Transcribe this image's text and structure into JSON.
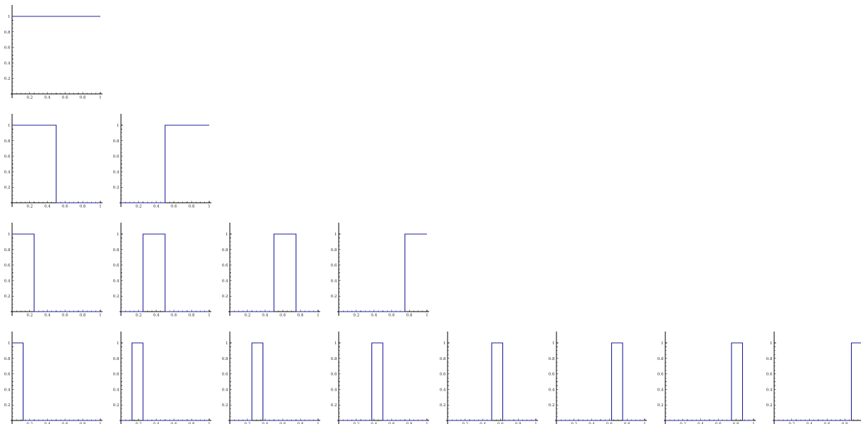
{
  "colors": {
    "series": "#1f1f9e",
    "axis": "#000000",
    "background": "#ffffff"
  },
  "chart_data": [
    {
      "type": "line",
      "row": 1,
      "col": 1,
      "x": [
        0,
        1
      ],
      "y": [
        1,
        1
      ],
      "xlim": [
        0,
        1
      ],
      "ylim": [
        0,
        1
      ],
      "x_ticks": [
        "0.2",
        "0.4",
        "0.6",
        "0.8",
        "1"
      ],
      "y_ticks": [
        "0.2",
        "0.4",
        "0.6",
        "0.8",
        "1"
      ]
    },
    {
      "type": "line",
      "row": 2,
      "col": 1,
      "x": [
        0,
        0.5,
        0.5,
        1
      ],
      "y": [
        1,
        1,
        0,
        0
      ],
      "xlim": [
        0,
        1
      ],
      "ylim": [
        0,
        1
      ],
      "x_ticks": [
        "0.2",
        "0.4",
        "0.6",
        "0.8",
        "1"
      ],
      "y_ticks": [
        "0.2",
        "0.4",
        "0.6",
        "0.8",
        "1"
      ]
    },
    {
      "type": "line",
      "row": 2,
      "col": 2,
      "x": [
        0,
        0.5,
        0.5,
        1
      ],
      "y": [
        0,
        0,
        1,
        1
      ],
      "xlim": [
        0,
        1
      ],
      "ylim": [
        0,
        1
      ],
      "x_ticks": [
        "0.2",
        "0.4",
        "0.6",
        "0.8",
        "1"
      ],
      "y_ticks": [
        "0.2",
        "0.4",
        "0.6",
        "0.8",
        "1"
      ]
    },
    {
      "type": "line",
      "row": 3,
      "col": 1,
      "x": [
        0,
        0.25,
        0.25,
        1
      ],
      "y": [
        1,
        1,
        0,
        0
      ],
      "xlim": [
        0,
        1
      ],
      "ylim": [
        0,
        1
      ],
      "x_ticks": [
        "0.2",
        "0.4",
        "0.6",
        "0.8",
        "1"
      ],
      "y_ticks": [
        "0.2",
        "0.4",
        "0.6",
        "0.8",
        "1"
      ]
    },
    {
      "type": "line",
      "row": 3,
      "col": 2,
      "x": [
        0,
        0.25,
        0.25,
        0.5,
        0.5,
        1
      ],
      "y": [
        0,
        0,
        1,
        1,
        0,
        0
      ],
      "xlim": [
        0,
        1
      ],
      "ylim": [
        0,
        1
      ],
      "x_ticks": [
        "0.2",
        "0.4",
        "0.6",
        "0.8",
        "1"
      ],
      "y_ticks": [
        "0.2",
        "0.4",
        "0.6",
        "0.8",
        "1"
      ]
    },
    {
      "type": "line",
      "row": 3,
      "col": 3,
      "x": [
        0,
        0.5,
        0.5,
        0.75,
        0.75,
        1
      ],
      "y": [
        0,
        0,
        1,
        1,
        0,
        0
      ],
      "xlim": [
        0,
        1
      ],
      "ylim": [
        0,
        1
      ],
      "x_ticks": [
        "0.2",
        "0.4",
        "0.6",
        "0.8",
        "1"
      ],
      "y_ticks": [
        "0.2",
        "0.4",
        "0.6",
        "0.8",
        "1"
      ]
    },
    {
      "type": "line",
      "row": 3,
      "col": 4,
      "x": [
        0,
        0.75,
        0.75,
        1
      ],
      "y": [
        0,
        0,
        1,
        1
      ],
      "xlim": [
        0,
        1
      ],
      "ylim": [
        0,
        1
      ],
      "x_ticks": [
        "0.2",
        "0.4",
        "0.6",
        "0.8",
        "1"
      ],
      "y_ticks": [
        "0.2",
        "0.4",
        "0.6",
        "0.8",
        "1"
      ]
    },
    {
      "type": "line",
      "row": 4,
      "col": 1,
      "x": [
        0,
        0.125,
        0.125,
        1
      ],
      "y": [
        1,
        1,
        0,
        0
      ],
      "xlim": [
        0,
        1
      ],
      "ylim": [
        0,
        1
      ],
      "x_ticks": [
        "0.2",
        "0.4",
        "0.6",
        "0.8",
        "1"
      ],
      "y_ticks": [
        "0.2",
        "0.4",
        "0.6",
        "0.8",
        "1"
      ]
    },
    {
      "type": "line",
      "row": 4,
      "col": 2,
      "x": [
        0,
        0.125,
        0.125,
        0.25,
        0.25,
        1
      ],
      "y": [
        0,
        0,
        1,
        1,
        0,
        0
      ],
      "xlim": [
        0,
        1
      ],
      "ylim": [
        0,
        1
      ],
      "x_ticks": [
        "0.2",
        "0.4",
        "0.6",
        "0.8",
        "1"
      ],
      "y_ticks": [
        "0.2",
        "0.4",
        "0.6",
        "0.8",
        "1"
      ]
    },
    {
      "type": "line",
      "row": 4,
      "col": 3,
      "x": [
        0,
        0.25,
        0.25,
        0.375,
        0.375,
        1
      ],
      "y": [
        0,
        0,
        1,
        1,
        0,
        0
      ],
      "xlim": [
        0,
        1
      ],
      "ylim": [
        0,
        1
      ],
      "x_ticks": [
        "0.2",
        "0.4",
        "0.6",
        "0.8",
        "1"
      ],
      "y_ticks": [
        "0.2",
        "0.4",
        "0.6",
        "0.8",
        "1"
      ]
    },
    {
      "type": "line",
      "row": 4,
      "col": 4,
      "x": [
        0,
        0.375,
        0.375,
        0.5,
        0.5,
        1
      ],
      "y": [
        0,
        0,
        1,
        1,
        0,
        0
      ],
      "xlim": [
        0,
        1
      ],
      "ylim": [
        0,
        1
      ],
      "x_ticks": [
        "0.2",
        "0.4",
        "0.6",
        "0.8",
        "1"
      ],
      "y_ticks": [
        "0.2",
        "0.4",
        "0.6",
        "0.8",
        "1"
      ]
    },
    {
      "type": "line",
      "row": 4,
      "col": 5,
      "x": [
        0,
        0.5,
        0.5,
        0.625,
        0.625,
        1
      ],
      "y": [
        0,
        0,
        1,
        1,
        0,
        0
      ],
      "xlim": [
        0,
        1
      ],
      "ylim": [
        0,
        1
      ],
      "x_ticks": [
        "0.2",
        "0.4",
        "0.6",
        "0.8",
        "1"
      ],
      "y_ticks": [
        "0.2",
        "0.4",
        "0.6",
        "0.8",
        "1"
      ]
    },
    {
      "type": "line",
      "row": 4,
      "col": 6,
      "x": [
        0,
        0.625,
        0.625,
        0.75,
        0.75,
        1
      ],
      "y": [
        0,
        0,
        1,
        1,
        0,
        0
      ],
      "xlim": [
        0,
        1
      ],
      "ylim": [
        0,
        1
      ],
      "x_ticks": [
        "0.2",
        "0.4",
        "0.6",
        "0.8",
        "1"
      ],
      "y_ticks": [
        "0.2",
        "0.4",
        "0.6",
        "0.8",
        "1"
      ]
    },
    {
      "type": "line",
      "row": 4,
      "col": 7,
      "x": [
        0,
        0.75,
        0.75,
        0.875,
        0.875,
        1
      ],
      "y": [
        0,
        0,
        1,
        1,
        0,
        0
      ],
      "xlim": [
        0,
        1
      ],
      "ylim": [
        0,
        1
      ],
      "x_ticks": [
        "0.2",
        "0.4",
        "0.6",
        "0.8",
        "1"
      ],
      "y_ticks": [
        "0.2",
        "0.4",
        "0.6",
        "0.8",
        "1"
      ]
    },
    {
      "type": "line",
      "row": 4,
      "col": 8,
      "x": [
        0,
        0.875,
        0.875,
        1
      ],
      "y": [
        0,
        0,
        1,
        1
      ],
      "xlim": [
        0,
        1
      ],
      "ylim": [
        0,
        1
      ],
      "x_ticks": [
        "0.2",
        "0.4",
        "0.6",
        "0.8",
        "1"
      ],
      "y_ticks": [
        "0.2",
        "0.4",
        "0.6",
        "0.8",
        "1"
      ]
    }
  ]
}
